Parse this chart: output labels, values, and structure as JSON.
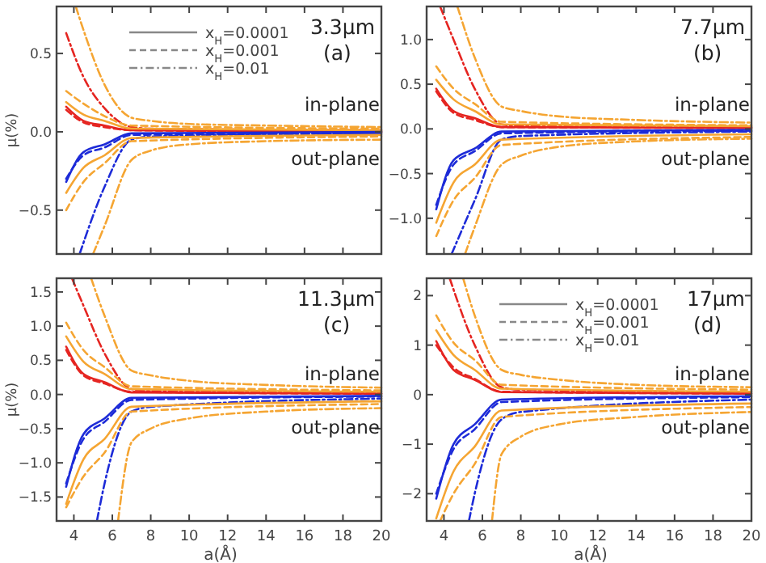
{
  "chart_data": [
    {
      "type": "line",
      "title": "3.3μm",
      "subtitle": "(a)",
      "ylabel": "μ(%)",
      "tick_labels": "y",
      "xlim": [
        3.1,
        20
      ],
      "ylim": [
        -0.78,
        0.8
      ],
      "xticks": [
        4,
        6,
        8,
        10,
        12,
        14,
        16,
        18,
        20
      ],
      "yticks": [
        {
          "value": -0.5,
          "label": "−0.5"
        },
        {
          "value": 0,
          "label": "0.0"
        },
        {
          "value": 0.5,
          "label": "0.5"
        }
      ],
      "annotations": [
        "in-plane",
        "out-plane",
        "x$_{H}$=0.0001",
        "x$_{H}$=0.001",
        "x$_{H}$=0.01"
      ],
      "series": [
        {
          "color": "#e52521",
          "line_style": "solid",
          "x": [
            3.6,
            4.5,
            5.6,
            7,
            20
          ],
          "values": [
            0.16,
            0.07,
            0.04,
            0.01,
            0
          ]
        },
        {
          "color": "#e52521",
          "line_style": "dashed",
          "x": [
            3.6,
            4.5,
            5.6,
            7,
            20
          ],
          "values": [
            0.14,
            0.06,
            0.03,
            0.01,
            0
          ]
        },
        {
          "color": "#e52521",
          "line_style": "dotted",
          "x": [
            3.6,
            4.5,
            5.6,
            7,
            8,
            20
          ],
          "values": [
            0.63,
            0.35,
            0.15,
            0.03,
            0.02,
            0.01
          ]
        },
        {
          "color": "#f5a532",
          "line_style": "solid",
          "x": [
            3.6,
            4.5,
            5.6,
            7,
            20
          ],
          "values": [
            0.19,
            0.11,
            0.07,
            0.02,
            0.01
          ]
        },
        {
          "color": "#f5a532",
          "line_style": "dashed",
          "x": [
            3.6,
            4.5,
            5.6,
            7,
            20
          ],
          "values": [
            0.26,
            0.18,
            0.1,
            0.04,
            0.02
          ]
        },
        {
          "color": "#f5a532",
          "line_style": "dotted",
          "x": [
            4.1,
            4.5,
            5.6,
            7,
            8,
            10,
            14,
            20
          ],
          "values": [
            0.8,
            0.65,
            0.3,
            0.09,
            0.07,
            0.05,
            0.04,
            0.03
          ]
        },
        {
          "color": "#1d2bd8",
          "line_style": "solid",
          "x": [
            3.6,
            4.5,
            5.6,
            7,
            20
          ],
          "values": [
            -0.32,
            -0.13,
            -0.08,
            -0.01,
            0
          ]
        },
        {
          "color": "#1d2bd8",
          "line_style": "dashed",
          "x": [
            3.6,
            4.5,
            5.6,
            7,
            20
          ],
          "values": [
            -0.3,
            -0.15,
            -0.1,
            -0.02,
            -0.01
          ]
        },
        {
          "color": "#1d2bd8",
          "line_style": "dotted",
          "x": [
            4.3,
            5.6,
            7,
            8,
            20
          ],
          "values": [
            -0.78,
            -0.35,
            -0.05,
            -0.03,
            -0.01
          ]
        },
        {
          "color": "#f5a532",
          "line_style": "solid",
          "x": [
            3.6,
            4.5,
            5.6,
            7,
            20
          ],
          "values": [
            -0.39,
            -0.23,
            -0.15,
            -0.04,
            -0.02
          ]
        },
        {
          "color": "#f5a532",
          "line_style": "dashed",
          "x": [
            3.6,
            4.5,
            5.6,
            7,
            20
          ],
          "values": [
            -0.5,
            -0.32,
            -0.2,
            -0.06,
            -0.03
          ]
        },
        {
          "color": "#f5a532",
          "line_style": "dotted",
          "x": [
            5,
            5.6,
            7,
            8,
            10,
            14,
            20
          ],
          "values": [
            -0.78,
            -0.6,
            -0.18,
            -0.12,
            -0.08,
            -0.06,
            -0.05
          ]
        }
      ]
    },
    {
      "type": "line",
      "title": "7.7μm",
      "subtitle": "(b)",
      "tick_labels": "y",
      "xlim": [
        3.1,
        20
      ],
      "ylim": [
        -1.4,
        1.37
      ],
      "xticks": [
        4,
        6,
        8,
        10,
        12,
        14,
        16,
        18,
        20
      ],
      "yticks": [
        {
          "value": -1,
          "label": "−1.0"
        },
        {
          "value": -0.5,
          "label": "−0.5"
        },
        {
          "value": 0,
          "label": "0.0"
        },
        {
          "value": 0.5,
          "label": "0.5"
        },
        {
          "value": 1,
          "label": "1.0"
        }
      ],
      "annotations": [
        "in-plane",
        "out-plane"
      ],
      "series": [
        {
          "color": "#e52521",
          "line_style": "solid",
          "x": [
            3.6,
            4.5,
            5.6,
            7,
            20
          ],
          "values": [
            0.45,
            0.2,
            0.12,
            0.02,
            0.01
          ]
        },
        {
          "color": "#e52521",
          "line_style": "dashed",
          "x": [
            3.6,
            4.5,
            5.6,
            7,
            20
          ],
          "values": [
            0.42,
            0.18,
            0.1,
            0.02,
            0.01
          ]
        },
        {
          "color": "#e52521",
          "line_style": "dotted",
          "x": [
            3.8,
            4.5,
            5.6,
            7,
            8,
            20
          ],
          "values": [
            1.37,
            1.0,
            0.45,
            0.05,
            0.03,
            0.02
          ]
        },
        {
          "color": "#f5a532",
          "line_style": "solid",
          "x": [
            3.6,
            4.5,
            5.6,
            7,
            20
          ],
          "values": [
            0.55,
            0.33,
            0.2,
            0.05,
            0.03
          ]
        },
        {
          "color": "#f5a532",
          "line_style": "dashed",
          "x": [
            3.6,
            4.5,
            5.6,
            7,
            20
          ],
          "values": [
            0.7,
            0.45,
            0.28,
            0.08,
            0.04
          ]
        },
        {
          "color": "#f5a532",
          "line_style": "dotted",
          "x": [
            4.7,
            5.6,
            7,
            8,
            10,
            14,
            20
          ],
          "values": [
            1.37,
            0.8,
            0.25,
            0.2,
            0.14,
            0.1,
            0.07
          ]
        },
        {
          "color": "#1d2bd8",
          "line_style": "solid",
          "x": [
            3.6,
            4.5,
            5.6,
            7,
            20
          ],
          "values": [
            -0.9,
            -0.35,
            -0.22,
            -0.03,
            -0.01
          ]
        },
        {
          "color": "#1d2bd8",
          "line_style": "dashed",
          "x": [
            3.6,
            4.5,
            5.6,
            7,
            20
          ],
          "values": [
            -0.85,
            -0.4,
            -0.25,
            -0.05,
            -0.02
          ]
        },
        {
          "color": "#1d2bd8",
          "line_style": "dotted",
          "x": [
            4.4,
            5.6,
            7,
            8,
            20
          ],
          "values": [
            -1.4,
            -0.8,
            -0.12,
            -0.08,
            -0.03
          ]
        },
        {
          "color": "#f5a532",
          "line_style": "solid",
          "x": [
            3.6,
            4.5,
            5.6,
            7,
            20
          ],
          "values": [
            -1.05,
            -0.6,
            -0.4,
            -0.12,
            -0.06
          ]
        },
        {
          "color": "#f5a532",
          "line_style": "dashed",
          "x": [
            3.6,
            4.5,
            5.6,
            7,
            20
          ],
          "values": [
            -1.2,
            -0.8,
            -0.55,
            -0.18,
            -0.09
          ]
        },
        {
          "color": "#f5a532",
          "line_style": "dotted",
          "x": [
            5.1,
            5.6,
            7,
            8,
            10,
            14,
            20
          ],
          "values": [
            -1.4,
            -1.1,
            -0.4,
            -0.3,
            -0.2,
            -0.14,
            -0.11
          ]
        }
      ]
    },
    {
      "type": "line",
      "title": "11.3μm",
      "subtitle": "(c)",
      "xlabel": "a(Å)",
      "ylabel": "μ(%)",
      "xlim": [
        3.1,
        20
      ],
      "ylim": [
        -1.85,
        1.7
      ],
      "xticks": [
        4,
        6,
        8,
        10,
        12,
        14,
        16,
        18,
        20
      ],
      "yticks": [
        {
          "value": -1.5,
          "label": "−1.5"
        },
        {
          "value": -1,
          "label": "−1.0"
        },
        {
          "value": -0.5,
          "label": "−0.5"
        },
        {
          "value": 0,
          "label": "0.0"
        },
        {
          "value": 0.5,
          "label": "0.5"
        },
        {
          "value": 1,
          "label": "1.0"
        },
        {
          "value": 1.5,
          "label": "1.5"
        }
      ],
      "annotations": [
        "in-plane",
        "out-plane"
      ],
      "series": [
        {
          "color": "#e52521",
          "line_style": "solid",
          "x": [
            3.6,
            4.5,
            5.6,
            7,
            20
          ],
          "values": [
            0.7,
            0.3,
            0.18,
            0.03,
            0.01
          ]
        },
        {
          "color": "#e52521",
          "line_style": "dashed",
          "x": [
            3.6,
            4.5,
            5.6,
            7,
            20
          ],
          "values": [
            0.65,
            0.28,
            0.16,
            0.04,
            0.01
          ]
        },
        {
          "color": "#e52521",
          "line_style": "dotted",
          "x": [
            3.9,
            4.5,
            5.6,
            7,
            8,
            20
          ],
          "values": [
            1.7,
            1.3,
            0.6,
            0.08,
            0.05,
            0.03
          ]
        },
        {
          "color": "#f5a532",
          "line_style": "solid",
          "x": [
            3.6,
            4.5,
            5.6,
            7,
            20
          ],
          "values": [
            0.85,
            0.48,
            0.3,
            0.08,
            0.04
          ]
        },
        {
          "color": "#f5a532",
          "line_style": "dashed",
          "x": [
            3.6,
            4.5,
            5.6,
            7,
            20
          ],
          "values": [
            1.05,
            0.65,
            0.4,
            0.12,
            0.06
          ]
        },
        {
          "color": "#f5a532",
          "line_style": "dotted",
          "x": [
            4.9,
            5.6,
            7,
            8,
            10,
            14,
            20
          ],
          "values": [
            1.7,
            1.15,
            0.35,
            0.28,
            0.2,
            0.14,
            0.1
          ]
        },
        {
          "color": "#1d2bd8",
          "line_style": "solid",
          "x": [
            3.6,
            4.5,
            5.6,
            7,
            20
          ],
          "values": [
            -1.35,
            -0.58,
            -0.35,
            -0.05,
            -0.02
          ]
        },
        {
          "color": "#1d2bd8",
          "line_style": "dashed",
          "x": [
            3.6,
            4.5,
            5.6,
            7,
            20
          ],
          "values": [
            -1.3,
            -0.65,
            -0.4,
            -0.08,
            -0.03
          ]
        },
        {
          "color": "#1d2bd8",
          "line_style": "dotted",
          "x": [
            5.2,
            5.6,
            7,
            8,
            20
          ],
          "values": [
            -1.85,
            -1.3,
            -0.25,
            -0.18,
            -0.06
          ]
        },
        {
          "color": "#f5a532",
          "line_style": "solid",
          "x": [
            3.6,
            4.5,
            5.6,
            7,
            20
          ],
          "values": [
            -1.6,
            -0.95,
            -0.65,
            -0.18,
            -0.1
          ]
        },
        {
          "color": "#f5a532",
          "line_style": "dashed",
          "x": [
            3.6,
            4.5,
            5.6,
            7,
            20
          ],
          "values": [
            -1.65,
            -1.2,
            -0.85,
            -0.25,
            -0.14
          ]
        },
        {
          "color": "#f5a532",
          "line_style": "dotted",
          "x": [
            6.3,
            7,
            8,
            10,
            14,
            20
          ],
          "values": [
            -1.85,
            -0.7,
            -0.5,
            -0.35,
            -0.25,
            -0.2
          ]
        }
      ]
    },
    {
      "type": "line",
      "title": "17μm",
      "subtitle": "(d)",
      "xlabel": "a(Å)",
      "xlim": [
        3.1,
        20
      ],
      "ylim": [
        -2.55,
        2.35
      ],
      "xticks": [
        4,
        6,
        8,
        10,
        12,
        14,
        16,
        18,
        20
      ],
      "yticks": [
        {
          "value": -2,
          "label": "−2"
        },
        {
          "value": -1,
          "label": "−1"
        },
        0,
        1,
        2
      ],
      "annotations": [
        "in-plane",
        "out-plane",
        "x$_{H}$=0.0001",
        "x$_{H}$=0.001",
        "x$_{H}$=0.01"
      ],
      "series": [
        {
          "color": "#e52521",
          "line_style": "solid",
          "x": [
            3.6,
            4.5,
            5.6,
            7,
            20
          ],
          "values": [
            1.08,
            0.5,
            0.3,
            0.05,
            0.02
          ]
        },
        {
          "color": "#e52521",
          "line_style": "dashed",
          "x": [
            3.6,
            4.5,
            5.6,
            7,
            20
          ],
          "values": [
            1.0,
            0.55,
            0.32,
            0.06,
            0.02
          ]
        },
        {
          "color": "#e52521",
          "line_style": "dotted",
          "x": [
            4.3,
            5.6,
            7,
            8,
            20
          ],
          "values": [
            2.35,
            1.0,
            0.15,
            0.1,
            0.05
          ]
        },
        {
          "color": "#f5a532",
          "line_style": "solid",
          "x": [
            3.6,
            4.5,
            5.6,
            7,
            20
          ],
          "values": [
            1.3,
            0.8,
            0.5,
            0.12,
            0.06
          ]
        },
        {
          "color": "#f5a532",
          "line_style": "dashed",
          "x": [
            3.6,
            4.5,
            5.6,
            7,
            20
          ],
          "values": [
            1.6,
            1.05,
            0.7,
            0.2,
            0.1
          ]
        },
        {
          "color": "#f5a532",
          "line_style": "dotted",
          "x": [
            5,
            5.6,
            7,
            8,
            10,
            14,
            20
          ],
          "values": [
            2.35,
            1.6,
            0.5,
            0.4,
            0.3,
            0.2,
            0.15
          ]
        },
        {
          "color": "#1d2bd8",
          "line_style": "solid",
          "x": [
            3.6,
            4.5,
            5.6,
            7,
            20
          ],
          "values": [
            -2.1,
            -1.0,
            -0.6,
            -0.1,
            -0.03
          ]
        },
        {
          "color": "#1d2bd8",
          "line_style": "dashed",
          "x": [
            3.6,
            4.5,
            5.6,
            7,
            20
          ],
          "values": [
            -2.0,
            -1.1,
            -0.7,
            -0.15,
            -0.05
          ]
        },
        {
          "color": "#1d2bd8",
          "line_style": "dotted",
          "x": [
            5.3,
            5.6,
            7,
            8,
            20
          ],
          "values": [
            -2.55,
            -2.0,
            -0.5,
            -0.35,
            -0.1
          ]
        },
        {
          "color": "#f5a532",
          "line_style": "solid",
          "x": [
            3.6,
            4.5,
            5.6,
            7,
            20
          ],
          "values": [
            -2.5,
            -1.55,
            -1.05,
            -0.32,
            -0.18
          ]
        },
        {
          "color": "#f5a532",
          "line_style": "dashed",
          "x": [
            3.8,
            4.5,
            5.6,
            7,
            20
          ],
          "values": [
            -2.55,
            -2.0,
            -1.4,
            -0.45,
            -0.25
          ]
        },
        {
          "color": "#f5a532",
          "line_style": "dotted",
          "x": [
            6.5,
            7,
            8,
            10,
            14,
            20
          ],
          "values": [
            -2.55,
            -1.2,
            -0.85,
            -0.6,
            -0.45,
            -0.35
          ]
        }
      ]
    }
  ]
}
